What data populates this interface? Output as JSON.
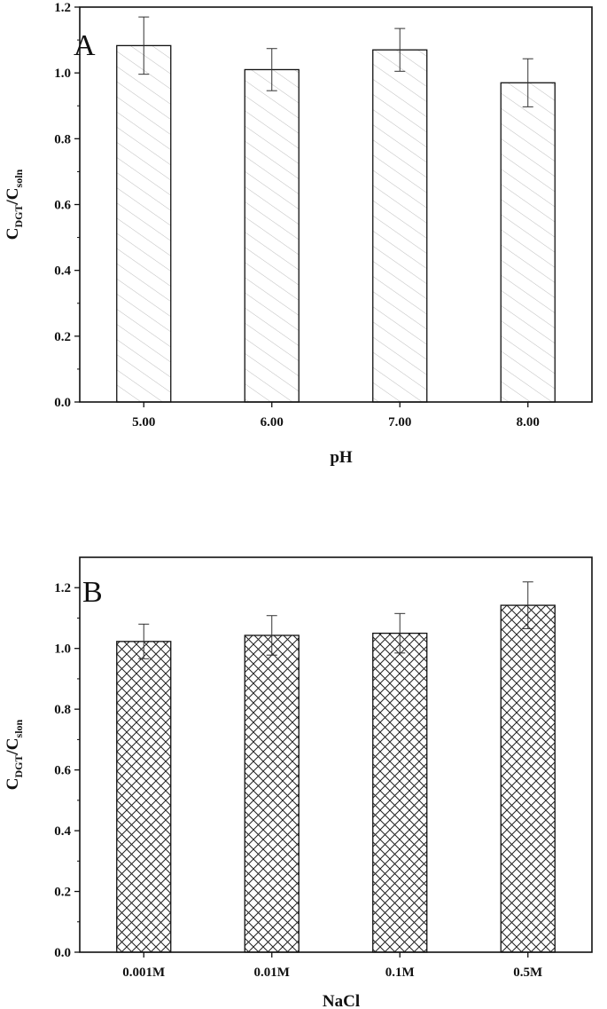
{
  "chart_data": [
    {
      "type": "bar",
      "panel_label": "A",
      "categories": [
        "5.00",
        "6.00",
        "7.00",
        "8.00"
      ],
      "values": [
        1.083,
        1.01,
        1.07,
        0.97
      ],
      "errors": [
        0.087,
        0.064,
        0.065,
        0.073
      ],
      "xlabel": "pH",
      "ylabel": {
        "main": "C",
        "sub1": "DGT",
        "mid": "/C",
        "sub2": "soln"
      },
      "ylim": [
        0,
        1.2
      ],
      "yticks": [
        "0.0",
        "0.2",
        "0.4",
        "0.6",
        "0.8",
        "1.0",
        "1.2"
      ],
      "bar_fill": "single-hatch",
      "grid": false
    },
    {
      "type": "bar",
      "panel_label": "B",
      "categories": [
        "0.001M",
        "0.01M",
        "0.1M",
        "0.5M"
      ],
      "values": [
        1.023,
        1.043,
        1.05,
        1.142
      ],
      "errors": [
        0.057,
        0.065,
        0.065,
        0.077
      ],
      "xlabel": "NaCl",
      "ylabel": {
        "main": "C",
        "sub1": "DGT",
        "mid": "/C",
        "sub2": "slon"
      },
      "ylim": [
        0,
        1.3
      ],
      "yticks": [
        "0.0",
        "0.2",
        "0.4",
        "0.6",
        "0.8",
        "1.0",
        "1.2"
      ],
      "bar_fill": "cross-hatch",
      "grid": false
    }
  ]
}
